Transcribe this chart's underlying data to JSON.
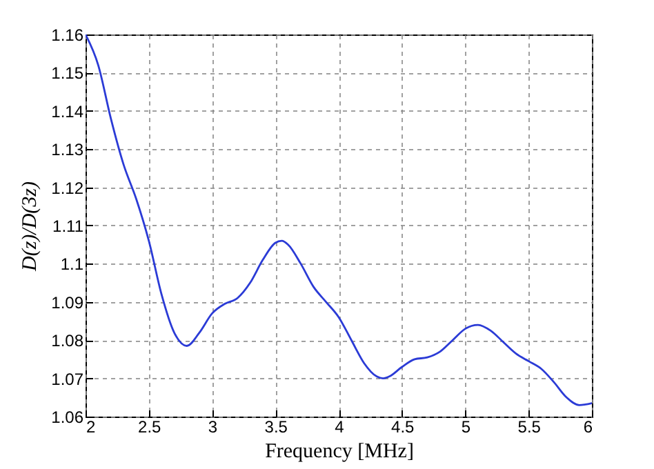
{
  "chart_data": {
    "type": "line",
    "xlabel": "Frequency [MHz]",
    "ylabel": "D(z)/D(3z)",
    "x": [
      2.0,
      2.1,
      2.2,
      2.3,
      2.4,
      2.5,
      2.6,
      2.7,
      2.8,
      2.9,
      3.0,
      3.1,
      3.2,
      3.3,
      3.4,
      3.5,
      3.55,
      3.6,
      3.7,
      3.8,
      3.9,
      4.0,
      4.1,
      4.2,
      4.3,
      4.35,
      4.4,
      4.5,
      4.6,
      4.7,
      4.8,
      4.9,
      5.0,
      5.1,
      5.2,
      5.3,
      5.4,
      5.5,
      5.6,
      5.7,
      5.8,
      5.9,
      6.0
    ],
    "series": [
      {
        "color": "#2b3bd6",
        "values": [
          1.16,
          1.152,
          1.138,
          1.126,
          1.117,
          1.106,
          1.092,
          1.082,
          1.0785,
          1.082,
          1.087,
          1.0895,
          1.091,
          1.095,
          1.101,
          1.1055,
          1.106,
          1.105,
          1.1,
          1.094,
          1.09,
          1.086,
          1.08,
          1.074,
          1.0705,
          1.07,
          1.0705,
          1.073,
          1.075,
          1.0755,
          1.077,
          1.08,
          1.083,
          1.084,
          1.0825,
          1.0795,
          1.0765,
          1.0745,
          1.0725,
          1.069,
          1.065,
          1.063,
          1.0635
        ]
      }
    ],
    "xlim": [
      2,
      6
    ],
    "xticks": [
      2,
      2.5,
      3,
      3.5,
      4,
      4.5,
      5,
      5.5,
      6
    ],
    "ylim": [
      1.06,
      1.16
    ],
    "yticks": [
      1.06,
      1.07,
      1.08,
      1.09,
      1.1,
      1.11,
      1.12,
      1.13,
      1.14,
      1.15,
      1.16
    ],
    "grid": true,
    "line_style": "solid",
    "marker": "none"
  }
}
